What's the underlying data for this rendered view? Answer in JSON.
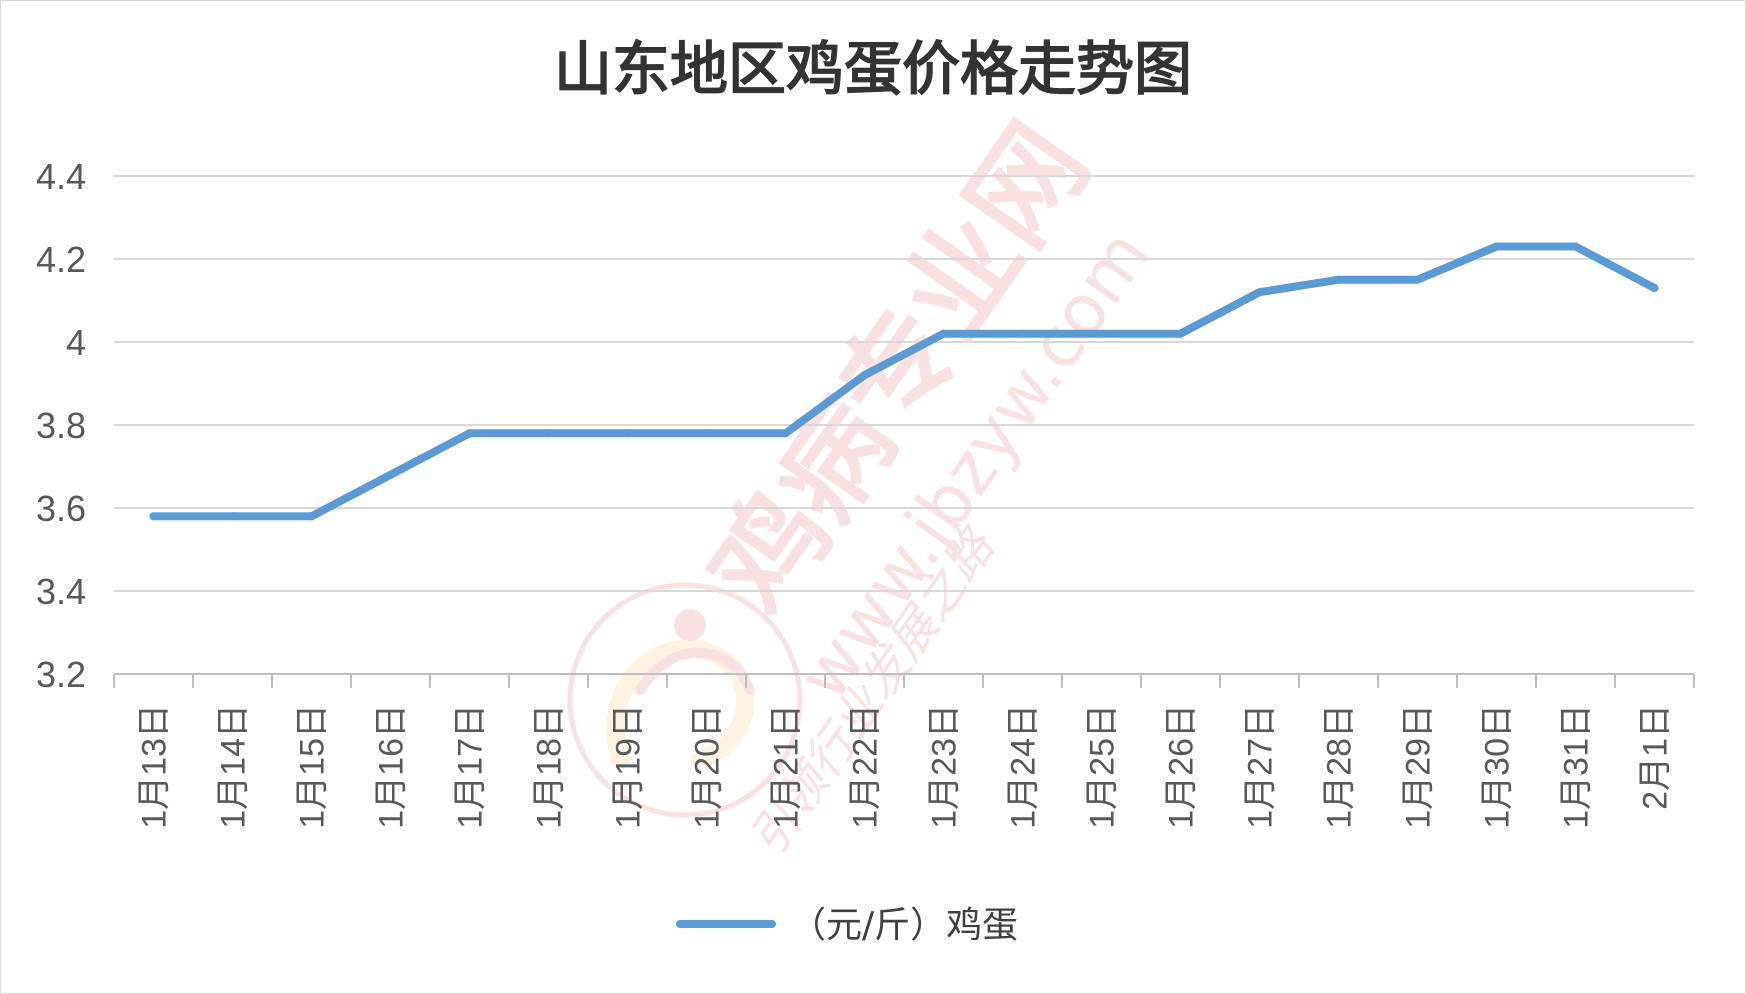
{
  "chart_data": {
    "type": "line",
    "title": "山东地区鸡蛋价格走势图",
    "xlabel": "",
    "ylabel": "",
    "categories": [
      "1月13日",
      "1月14日",
      "1月15日",
      "1月16日",
      "1月17日",
      "1月18日",
      "1月19日",
      "1月20日",
      "1月21日",
      "1月22日",
      "1月23日",
      "1月24日",
      "1月25日",
      "1月26日",
      "1月27日",
      "1月28日",
      "1月29日",
      "1月30日",
      "1月31日",
      "2月1日"
    ],
    "series": [
      {
        "name": "（元/斤）鸡蛋",
        "color": "#5b9bd5",
        "values": [
          3.58,
          3.58,
          3.58,
          3.68,
          3.78,
          3.78,
          3.78,
          3.78,
          3.78,
          3.92,
          4.02,
          4.02,
          4.02,
          4.02,
          4.12,
          4.15,
          4.15,
          4.23,
          4.23,
          4.13
        ]
      }
    ],
    "y_ticks": [
      "3.2",
      "3.4",
      "3.6",
      "3.8",
      "4",
      "4.2",
      "4.4"
    ],
    "ylim": [
      3.2,
      4.4
    ],
    "grid": true,
    "legend_position": "bottom"
  },
  "watermark": {
    "brand": "鸡病专业网",
    "url": "www.jbzyw.com",
    "slogan": "引领行业发展之路",
    "color": "#e34a4a"
  }
}
